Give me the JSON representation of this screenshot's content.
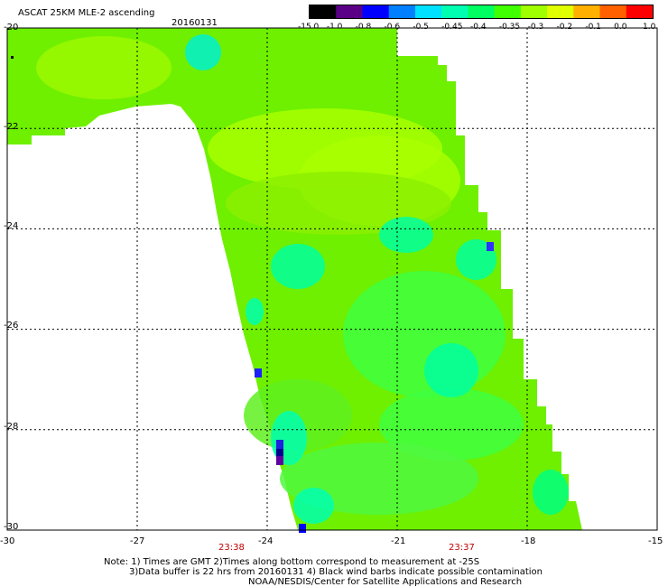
{
  "header": {
    "title": "ASCAT 25KM MLE-2 ascending",
    "date": "20160131"
  },
  "colorbar": {
    "labels": [
      "-15.0",
      "-1.0",
      "-0.8",
      "-0.6",
      "-0.5",
      "-0.45",
      "-0.4",
      "-0.35",
      "-0.3",
      "-0.2",
      "-0.1",
      "0.0",
      "1.0"
    ],
    "colors": [
      "#000000",
      "#5a0087",
      "#0000ff",
      "#0080ff",
      "#00e0ff",
      "#00ffb0",
      "#00ff60",
      "#40ff00",
      "#a0ff00",
      "#e0ff00",
      "#ffb000",
      "#ff6000",
      "#ff0000"
    ]
  },
  "axes": {
    "lat_labels": [
      "-20",
      "-22",
      "-24",
      "-26",
      "-28",
      "-30"
    ],
    "lon_labels": [
      "-30",
      "-27",
      "-24",
      "-21",
      "-18",
      "-15"
    ],
    "lat_range": [
      -30,
      -20
    ],
    "lon_range": [
      -30,
      -15
    ],
    "grid": true
  },
  "times": {
    "t1": "23:38",
    "t2": "23:37"
  },
  "notes": {
    "line1": "Note: 1) Times are GMT 2)Times along bottom correspond to measurement at -25S",
    "line2": "3)Data buffer is 22 hrs from 20160131 4) Black wind barbs indicate possible contamination",
    "line3": "NOAA/NESDIS/Center for Satellite Applications and Research"
  }
}
